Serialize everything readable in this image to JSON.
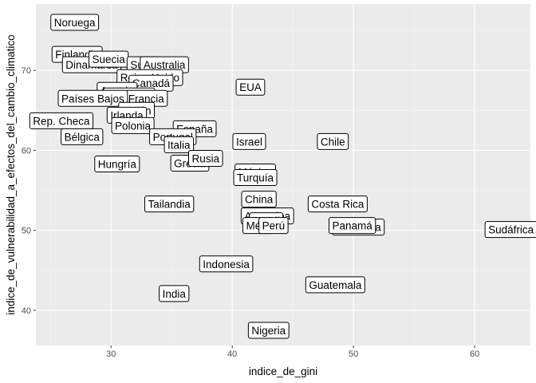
{
  "chart_data": {
    "type": "scatter",
    "xlabel": "indice_de_gini",
    "ylabel": "indice_de_vulnerabilidad_a_efectos_del_cambio_climatico",
    "xlim": [
      23.8,
      64.6
    ],
    "ylim": [
      35.6,
      78.3
    ],
    "x_ticks": [
      30,
      40,
      50,
      60
    ],
    "y_ticks": [
      40,
      50,
      60,
      70
    ],
    "grid": true,
    "legend": "none",
    "colors": {
      "panel": "#ebebeb",
      "grid_major": "#ffffff",
      "grid_minor": "#f5f5f5",
      "label_fill": "#ffffff",
      "label_border": "#000000"
    },
    "points": [
      {
        "label": "Noruega",
        "x": 27.0,
        "y": 76.0
      },
      {
        "label": "Finlandia",
        "x": 27.2,
        "y": 72.0
      },
      {
        "label": "Dinamarca",
        "x": 28.4,
        "y": 70.7
      },
      {
        "label": "Suecia",
        "x": 29.8,
        "y": 71.4
      },
      {
        "label": "Suiza",
        "x": 32.7,
        "y": 70.7
      },
      {
        "label": "Australia",
        "x": 34.4,
        "y": 70.7
      },
      {
        "label": "Reino Unido",
        "x": 33.2,
        "y": 69.1
      },
      {
        "label": "Canadá",
        "x": 33.3,
        "y": 68.4
      },
      {
        "label": "Austria",
        "x": 30.5,
        "y": 67.5
      },
      {
        "label": "Alemania",
        "x": 31.5,
        "y": 66.8
      },
      {
        "label": "EUA",
        "x": 41.5,
        "y": 67.9
      },
      {
        "label": "Francia",
        "x": 32.9,
        "y": 66.5
      },
      {
        "label": "Países Bajos",
        "x": 28.5,
        "y": 66.5
      },
      {
        "label": "Japón",
        "x": 32.1,
        "y": 65.0
      },
      {
        "label": "Irlanda",
        "x": 31.3,
        "y": 64.4
      },
      {
        "label": "Rep. Checa",
        "x": 25.9,
        "y": 63.7
      },
      {
        "label": "Polonia",
        "x": 31.8,
        "y": 63.1
      },
      {
        "label": "España",
        "x": 36.9,
        "y": 62.7
      },
      {
        "label": "Bélgica",
        "x": 27.6,
        "y": 61.7
      },
      {
        "label": "Portugal",
        "x": 35.1,
        "y": 61.7
      },
      {
        "label": "Israel",
        "x": 41.4,
        "y": 61.1
      },
      {
        "label": "Chile",
        "x": 48.3,
        "y": 61.1
      },
      {
        "label": "Italia",
        "x": 35.6,
        "y": 60.7
      },
      {
        "label": "Grecia",
        "x": 36.5,
        "y": 58.4
      },
      {
        "label": "Rusia",
        "x": 37.8,
        "y": 59.0
      },
      {
        "label": "Hungría",
        "x": 30.5,
        "y": 58.3
      },
      {
        "label": "México",
        "x": 41.9,
        "y": 57.3
      },
      {
        "label": "Turquía",
        "x": 41.9,
        "y": 56.6
      },
      {
        "label": "China",
        "x": 42.2,
        "y": 53.9
      },
      {
        "label": "Tailandia",
        "x": 34.8,
        "y": 53.3
      },
      {
        "label": "Costa Rica",
        "x": 48.7,
        "y": 53.3
      },
      {
        "label": "Argentina",
        "x": 42.9,
        "y": 51.8
      },
      {
        "label": "Brasil",
        "x": 42.8,
        "y": 51.2
      },
      {
        "label": "Colombia",
        "x": 50.4,
        "y": 50.4
      },
      {
        "label": "Panamá",
        "x": 49.9,
        "y": 50.6
      },
      {
        "label": "Méx.",
        "x": 42.1,
        "y": 50.6
      },
      {
        "label": "Perú",
        "x": 43.4,
        "y": 50.6
      },
      {
        "label": "Sudáfrica",
        "x": 63.0,
        "y": 50.1
      },
      {
        "label": "Indonesia",
        "x": 39.5,
        "y": 45.8
      },
      {
        "label": "India",
        "x": 35.2,
        "y": 42.1
      },
      {
        "label": "Guatemala",
        "x": 48.5,
        "y": 43.2
      },
      {
        "label": "Nigeria",
        "x": 43.0,
        "y": 37.5
      }
    ]
  }
}
